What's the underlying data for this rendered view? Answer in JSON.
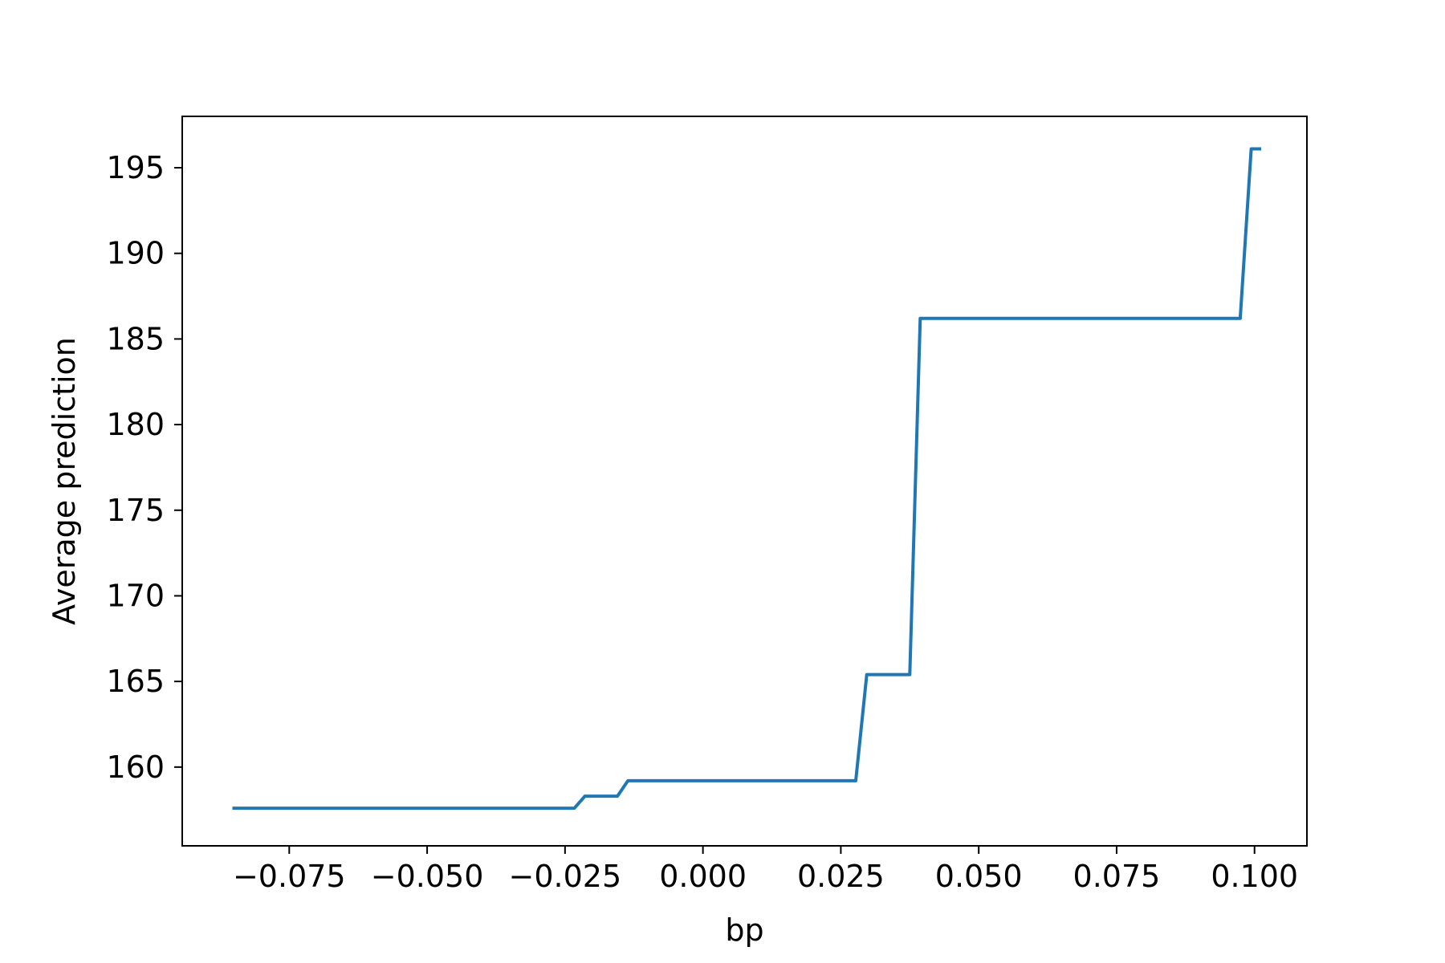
{
  "chart_data": {
    "type": "line",
    "title": "",
    "xlabel": "bp",
    "ylabel": "Average prediction",
    "xlim": [
      -0.0944,
      0.1095
    ],
    "ylim": [
      155.4,
      198.0
    ],
    "grid": false,
    "x_ticks": [
      {
        "value": -0.075,
        "label": "−0.075"
      },
      {
        "value": -0.05,
        "label": "−0.050"
      },
      {
        "value": -0.025,
        "label": "−0.025"
      },
      {
        "value": 0.0,
        "label": "0.000"
      },
      {
        "value": 0.025,
        "label": "0.025"
      },
      {
        "value": 0.05,
        "label": "0.050"
      },
      {
        "value": 0.075,
        "label": "0.075"
      },
      {
        "value": 0.1,
        "label": "0.100"
      }
    ],
    "y_ticks": [
      {
        "value": 160,
        "label": "160"
      },
      {
        "value": 165,
        "label": "165"
      },
      {
        "value": 170,
        "label": "170"
      },
      {
        "value": 175,
        "label": "175"
      },
      {
        "value": 180,
        "label": "180"
      },
      {
        "value": 185,
        "label": "185"
      },
      {
        "value": 190,
        "label": "190"
      },
      {
        "value": 195,
        "label": "195"
      }
    ],
    "series": [
      {
        "color": "#1f77b4",
        "x": [
          -0.0853,
          -0.0233,
          -0.0214,
          -0.0155,
          -0.0136,
          0.0277,
          0.0297,
          0.0375,
          0.0394,
          0.0974,
          0.0994,
          0.1012
        ],
        "y": [
          157.6,
          157.6,
          158.3,
          158.3,
          159.2,
          159.2,
          165.4,
          165.4,
          186.2,
          186.2,
          196.1,
          196.1
        ]
      }
    ]
  }
}
